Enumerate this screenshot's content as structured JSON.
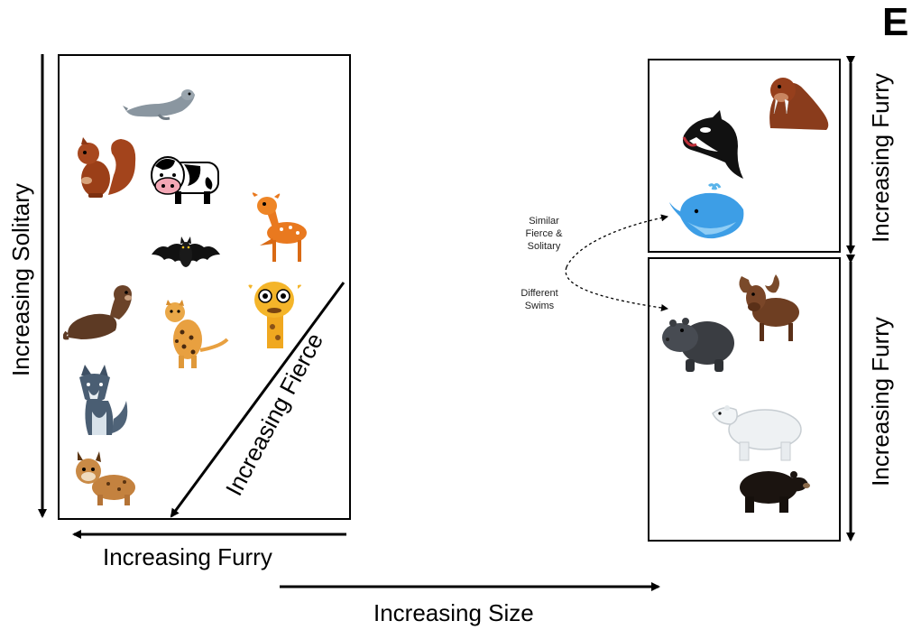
{
  "panel_letter": "E",
  "labels": {
    "solitary": "Increasing Solitary",
    "fierce": "Increasing Fierce",
    "furry_left": "Increasing Furry",
    "size": "Increasing Size",
    "furry_right_top": "Increasing Furry",
    "furry_right_bottom": "Increasing Furry"
  },
  "annotation": {
    "similar_line1": "Similar",
    "similar_line2": "Fierce &",
    "similar_line3": "Solitary",
    "different_line1": "Different",
    "different_line2": "Swims"
  },
  "animals": {
    "left_box": [
      "seal",
      "squirrel",
      "cow",
      "deer",
      "bat",
      "otter",
      "leopard",
      "giraffe",
      "wolf",
      "lynx"
    ],
    "right_top_box": [
      "walrus",
      "orca",
      "blue-whale"
    ],
    "right_bottom_box": [
      "moose",
      "hippo",
      "polar-bear",
      "black-bear"
    ]
  },
  "colors": {
    "line": "#000000",
    "background": "#ffffff"
  }
}
